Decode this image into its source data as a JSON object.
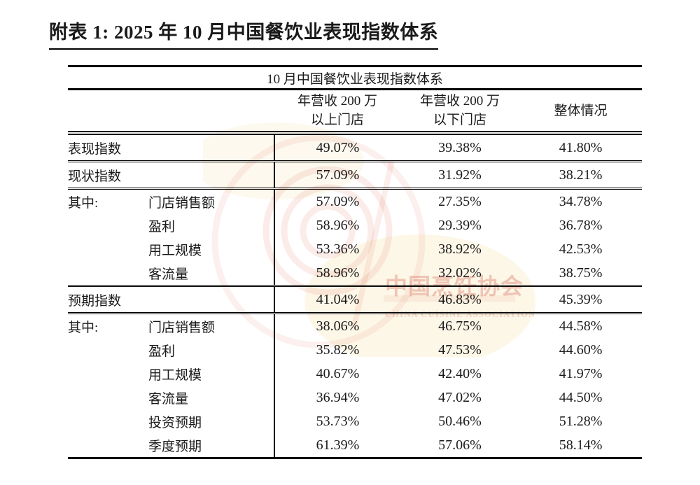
{
  "page": {
    "title": "附表 1: 2025 年 10 月中国餐饮业表现指数体系"
  },
  "table": {
    "caption": "10 月中国餐饮业表现指数体系",
    "col_headers": [
      {
        "line1": "年营收 200 万",
        "line2": "以上门店"
      },
      {
        "line1": "年营收 200 万",
        "line2": "以下门店"
      },
      {
        "line1": "整体情况",
        "line2": ""
      }
    ],
    "subs_prefix_label": "其中:",
    "sections": [
      {
        "label": "表现指数",
        "values": [
          "49.07%",
          "39.38%",
          "41.80%"
        ],
        "subs": []
      },
      {
        "label": "现状指数",
        "values": [
          "57.09%",
          "31.92%",
          "38.21%"
        ],
        "subs": [
          {
            "label": "门店销售额",
            "values": [
              "57.09%",
              "27.35%",
              "34.78%"
            ]
          },
          {
            "label": "盈利",
            "values": [
              "58.96%",
              "29.39%",
              "36.78%"
            ]
          },
          {
            "label": "用工规模",
            "values": [
              "53.36%",
              "38.92%",
              "42.53%"
            ]
          },
          {
            "label": "客流量",
            "values": [
              "58.96%",
              "32.02%",
              "38.75%"
            ]
          }
        ]
      },
      {
        "label": "预期指数",
        "values": [
          "41.04%",
          "46.83%",
          "45.39%"
        ],
        "subs": [
          {
            "label": "门店销售额",
            "values": [
              "38.06%",
              "46.75%",
              "44.58%"
            ]
          },
          {
            "label": "盈利",
            "values": [
              "35.82%",
              "47.53%",
              "44.60%"
            ]
          },
          {
            "label": "用工规模",
            "values": [
              "40.67%",
              "42.40%",
              "41.97%"
            ]
          },
          {
            "label": "客流量",
            "values": [
              "36.94%",
              "47.02%",
              "44.50%"
            ]
          },
          {
            "label": "投资预期",
            "values": [
              "53.73%",
              "50.46%",
              "51.28%"
            ]
          },
          {
            "label": "季度预期",
            "values": [
              "61.39%",
              "57.06%",
              "58.14%"
            ]
          }
        ]
      }
    ]
  },
  "watermark": {
    "text_cn": "中国烹饪协会",
    "text_en": "CHINA CUISINE ASSOCIATION",
    "color": "#e0705a"
  }
}
